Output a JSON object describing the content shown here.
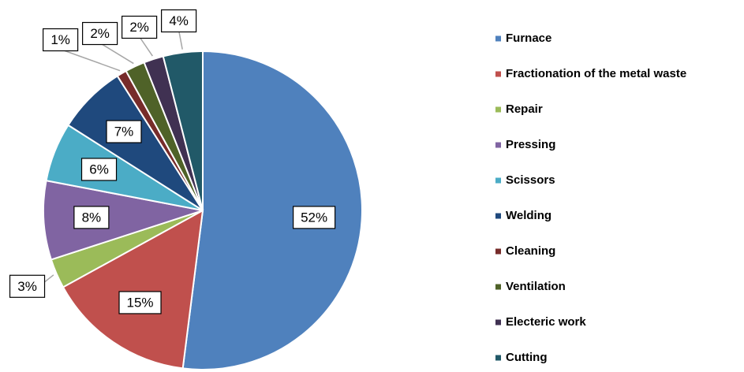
{
  "chart_data": {
    "type": "pie",
    "categories": [
      "Furnace",
      "Fractionation of the metal waste",
      "Repair",
      "Pressing",
      "Scissors",
      "Welding",
      "Cleaning",
      "Ventilation",
      "Electeric work",
      "Cutting"
    ],
    "values": [
      52,
      15,
      3,
      8,
      6,
      7,
      1,
      2,
      2,
      4
    ],
    "value_labels": [
      "52%",
      "15%",
      "3%",
      "8%",
      "6%",
      "7%",
      "1%",
      "2%",
      "2%",
      "4%"
    ],
    "colors": [
      "#4f81bd",
      "#c0504d",
      "#9bbb59",
      "#8064a2",
      "#4bacc6",
      "#1f497d",
      "#772c2a",
      "#4f6228",
      "#403152",
      "#215968"
    ],
    "legend": "right"
  }
}
